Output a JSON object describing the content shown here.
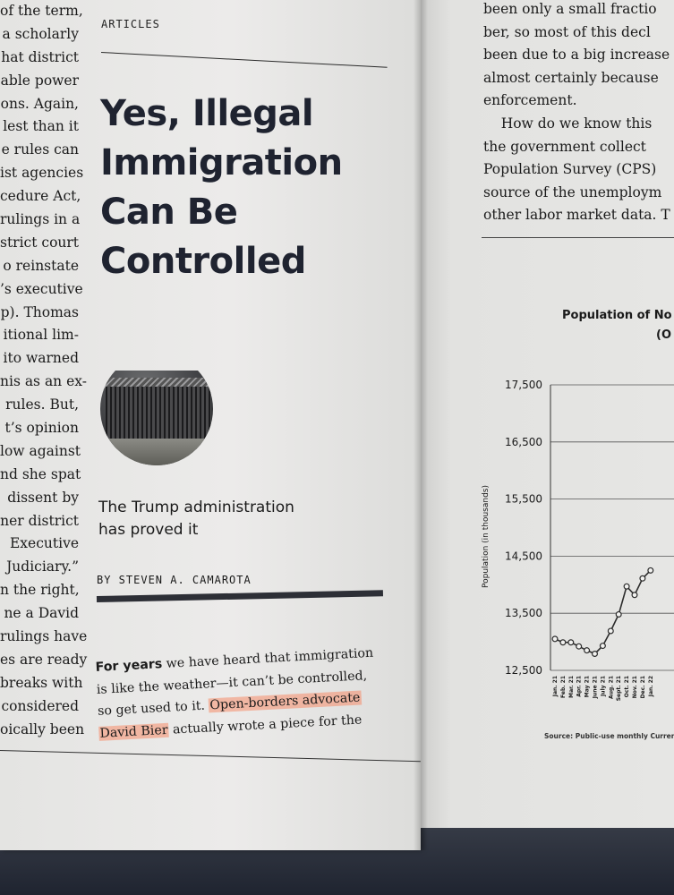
{
  "left_column_lines": [
    "of the term,",
    "a scholarly",
    "hat district",
    "able power",
    "ons. Again,",
    "lest than it",
    "e rules can",
    "ist agencies",
    "cedure Act,",
    "rulings in a",
    "strict court",
    "o reinstate",
    "’s executive",
    "p). Thomas",
    "itional lim-",
    "ito warned",
    "nis as an ex-",
    "rules. But,",
    "t’s opinion",
    "low against",
    "nd she spat",
    "dissent by",
    "ner district",
    "Executive",
    "Judiciary.”",
    "n the right,",
    "ne a David",
    "rulings have",
    "es are ready",
    "breaks with",
    "considered",
    "oically been"
  ],
  "article": {
    "section": "ARTICLES",
    "headline_lines": [
      "Yes, Illegal",
      "Immigration",
      "Can Be",
      "Controlled"
    ],
    "deck_lines": [
      "The Trump administration",
      "has proved it"
    ],
    "byline": "BY STEVEN A. CAMAROTA",
    "intro": {
      "lead": "For years",
      "line1_rest": " we have heard that immigration",
      "line2": "is like the weather—it can’t be controlled,",
      "line3_pre": "so get used to it. ",
      "line3_hl": "Open-borders advocate",
      "line4_hl": "David Bier",
      "line4_rest": " actually wrote a piece for the"
    }
  },
  "right_column_lines": [
    "been only a small fractio",
    "ber, so most of this decl",
    "been due to a big increase",
    "almost certainly because",
    "enforcement.",
    "    How do we know this",
    "the government collect",
    "Population Survey (CPS)",
    "source of the unemploym",
    "other labor market data. T"
  ],
  "chart_data": {
    "type": "line",
    "title": "Population of No",
    "subtitle": "(O",
    "ylabel": "Population (in thousands)",
    "ylim": [
      12500,
      17500
    ],
    "y_ticks": [
      "17,500",
      "16,500",
      "15,500",
      "14,500",
      "13,500",
      "12,500"
    ],
    "y_tick_values": [
      17500,
      16500,
      15500,
      14500,
      13500,
      12500
    ],
    "categories": [
      "Jan. 21",
      "Feb. 21",
      "Mar. 21",
      "Apr. 21",
      "May 21",
      "June 21",
      "July 21",
      "Aug. 21",
      "Sept. 21",
      "Oct. 21",
      "Nov. 21",
      "Dec. 21",
      "Jan. 22"
    ],
    "series": [
      {
        "values": [
          13050,
          12990,
          12990,
          12920,
          12850,
          12790,
          12930,
          13190,
          13480,
          13970,
          13820,
          14110,
          14250
        ]
      }
    ],
    "source": "Source: Public-use monthly Curren",
    "color": "#2b2b2b"
  }
}
